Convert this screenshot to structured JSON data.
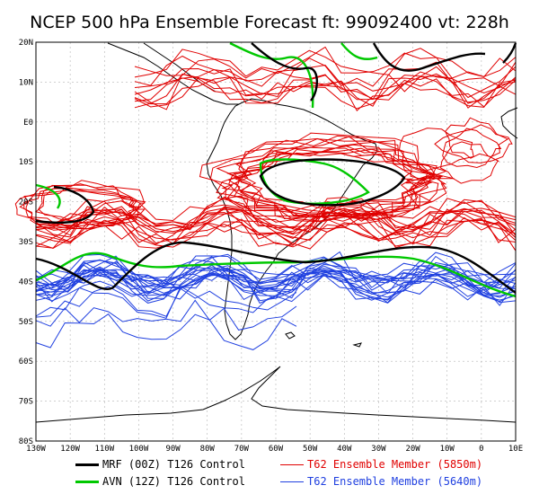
{
  "title": "NCEP 500 hPa Ensemble Forecast  ft: 99092400 vt: 228h",
  "axes": {
    "lat_labels": [
      "20N",
      "10N",
      "E0",
      "10S",
      "20S",
      "30S",
      "40S",
      "50S",
      "60S",
      "70S",
      "80S"
    ],
    "lon_labels": [
      "130W",
      "120W",
      "110W",
      "100W",
      "90W",
      "80W",
      "70W",
      "60W",
      "50W",
      "40W",
      "30W",
      "20W",
      "10W",
      "0",
      "10E"
    ]
  },
  "legend": [
    {
      "label": "MRF (00Z) T126 Control",
      "color": "#000000",
      "width": 3
    },
    {
      "label": "AVN (12Z) T126 Control",
      "color": "#00c800",
      "width": 3
    },
    {
      "label": "T62 Ensemble Member (5850m)",
      "color": "#e00000",
      "width": 1
    },
    {
      "label": "T62 Ensemble Member (5640m)",
      "color": "#2040e0",
      "width": 1
    }
  ],
  "colors": {
    "coast": "#000000",
    "grid": "#b4b4b4",
    "red": "#e00000",
    "blue": "#2040e0",
    "green": "#00c800",
    "black": "#000000"
  }
}
